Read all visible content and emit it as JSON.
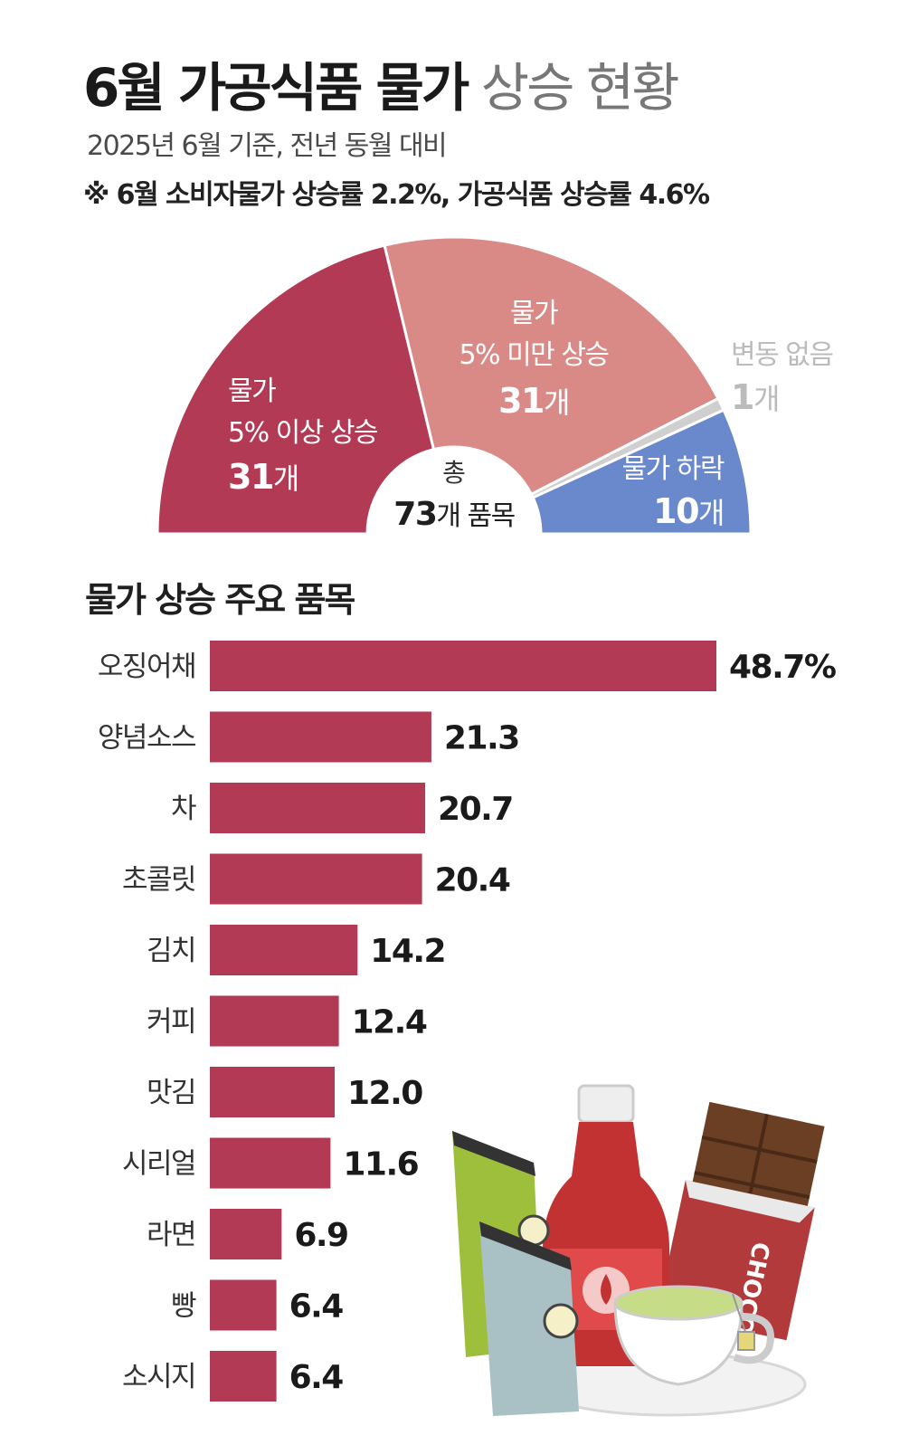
{
  "header": {
    "title_strong": "6월 가공식품 물가",
    "title_light": "상승 현황",
    "subtitle": "2025년 6월 기준, 전년 동월 대비",
    "note": "※ 6월 소비자물가 상승률 2.2%, 가공식품 상승률 4.6%"
  },
  "colors": {
    "crimson": "#B23A55",
    "pink": "#D98A87",
    "gray": "#CFCFCF",
    "blue": "#6A88CC",
    "bar": "#B23A55"
  },
  "chart_data": [
    {
      "type": "pie",
      "style": "semicircle-donut",
      "center_label": {
        "line1": "총",
        "count": "73",
        "unit": "개 품목"
      },
      "slices": [
        {
          "label_line1": "물가",
          "label_line2": "5% 이상 상승",
          "count_num": "31",
          "count_unit": "개",
          "value": 31,
          "color": "#B23A55"
        },
        {
          "label_line1": "물가",
          "label_line2": "5% 미만 상승",
          "count_num": "31",
          "count_unit": "개",
          "value": 31,
          "color": "#D98A87"
        },
        {
          "label_line1": "",
          "label_line2": "변동 없음",
          "count_num": "1",
          "count_unit": "개",
          "value": 1,
          "color": "#CFCFCF"
        },
        {
          "label_line1": "",
          "label_line2": "물가 하락",
          "count_num": "10",
          "count_unit": "개",
          "value": 10,
          "color": "#6A88CC"
        }
      ]
    },
    {
      "type": "bar",
      "orientation": "horizontal",
      "title": "물가 상승 주요 품목",
      "categories": [
        "오징어채",
        "양념소스",
        "차",
        "초콜릿",
        "김치",
        "커피",
        "맛김",
        "시리얼",
        "라면",
        "빵",
        "소시지"
      ],
      "values": [
        48.7,
        21.3,
        20.7,
        20.4,
        14.2,
        12.4,
        12.0,
        11.6,
        6.9,
        6.4,
        6.4
      ],
      "value_labels": [
        "48.7%",
        "21.3",
        "20.7",
        "20.4",
        "14.2",
        "12.4",
        "12.0",
        "11.6",
        "6.9",
        "6.4",
        "6.4"
      ],
      "xlim": [
        0,
        48.7
      ]
    }
  ]
}
